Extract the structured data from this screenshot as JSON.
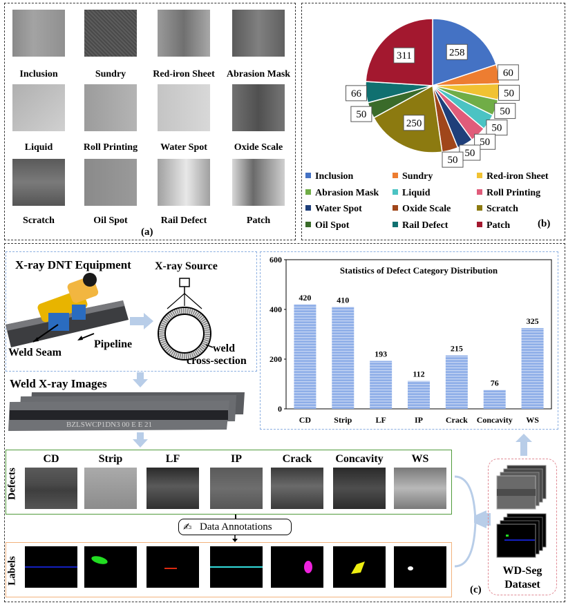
{
  "panel_a": {
    "label": "(a)",
    "items": [
      {
        "name": "Inclusion"
      },
      {
        "name": "Sundry"
      },
      {
        "name": "Red-iron Sheet"
      },
      {
        "name": "Abrasion Mask"
      },
      {
        "name": "Liquid"
      },
      {
        "name": "Roll Printing"
      },
      {
        "name": "Water Spot"
      },
      {
        "name": "Oxide Scale"
      },
      {
        "name": "Scratch"
      },
      {
        "name": "Oil Spot"
      },
      {
        "name": "Rail Defect"
      },
      {
        "name": "Patch"
      }
    ]
  },
  "panel_b": {
    "label": "(b)",
    "chart_data": {
      "type": "pie",
      "categories": [
        "Inclusion",
        "Sundry",
        "Red-iron Sheet",
        "Abrasion Mask",
        "Liquid",
        "Roll Printing",
        "Water Spot",
        "Oxide Scale",
        "Scratch",
        "Oil Spot",
        "Rail Defect",
        "Patch"
      ],
      "values": [
        258,
        60,
        50,
        50,
        50,
        50,
        50,
        50,
        250,
        50,
        66,
        311
      ],
      "colors": [
        "#4472c4",
        "#ed7d31",
        "#f1c232",
        "#70ad47",
        "#4bc3c3",
        "#e05c7a",
        "#1f3f7a",
        "#a0461a",
        "#8c7a10",
        "#3a6b2a",
        "#107070",
        "#a3182f"
      ],
      "legend_position": "bottom"
    }
  },
  "panel_c": {
    "label": "(c)",
    "equipment_title": "X-ray DNT Equipment",
    "source_title": "X-ray Source",
    "pipeline_label": "Pipeline",
    "weld_seam_label": "Weld Seam",
    "cross_section_label_1": "weld",
    "cross_section_label_2": "cross-section",
    "xray_images_title": "Weld X-ray Images",
    "defects_side": "Defects",
    "labels_side": "Labels",
    "annotations_label": "Data Annotations",
    "dataset_line_1": "WD-Seg",
    "dataset_line_2": "Dataset",
    "defects": [
      {
        "name": "CD",
        "label_color": "#1a2bff"
      },
      {
        "name": "Strip",
        "label_color": "#22dd22"
      },
      {
        "name": "LF",
        "label_color": "#dd2a10"
      },
      {
        "name": "IP",
        "label_color": "#33dddd"
      },
      {
        "name": "Crack",
        "label_color": "#ee22dd"
      },
      {
        "name": "Concavity",
        "label_color": "#eeee11"
      },
      {
        "name": "WS",
        "label_color": "#ffffff"
      }
    ],
    "bar_chart": {
      "chart_data": {
        "type": "bar",
        "title": "Statistics of Defect Category Distribution",
        "categories": [
          "CD",
          "Strip",
          "LF",
          "IP",
          "Crack",
          "Concavity",
          "WS"
        ],
        "values": [
          420,
          410,
          193,
          112,
          215,
          76,
          325
        ],
        "ylim": [
          0,
          600
        ],
        "yticks": [
          "0",
          "200",
          "400",
          "600"
        ],
        "bar_color": "#8eaee8"
      }
    }
  }
}
